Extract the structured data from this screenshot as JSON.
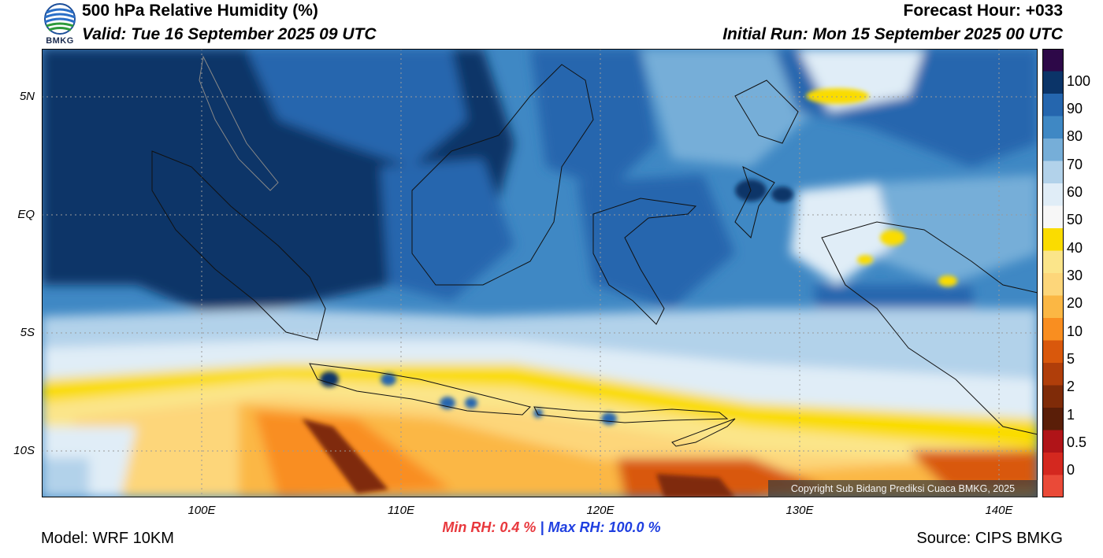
{
  "header": {
    "title": "500 hPa Relative Humidity (%)",
    "valid": "Valid: Tue 16 September 2025 09 UTC",
    "forecast_hour": "Forecast Hour: +033",
    "initial_run": "Initial Run: Mon 15 September 2025 00 UTC",
    "logo_text": "BMKG"
  },
  "map": {
    "lat_labels": [
      "5N",
      "EQ",
      "5S",
      "10S"
    ],
    "lon_labels": [
      "100E",
      "110E",
      "120E",
      "130E",
      "140E"
    ],
    "copyright": "Copyright Sub Bidang Prediksi Cuaca BMKG, 2025"
  },
  "colorbar": {
    "labels": [
      "100",
      "90",
      "80",
      "70",
      "60",
      "50",
      "40",
      "30",
      "20",
      "10",
      "5",
      "2",
      "1",
      "0.5",
      "0"
    ],
    "colors_top_to_bottom": [
      "#2d0848",
      "#0b3468",
      "#2566ae",
      "#3f88c4",
      "#76aed8",
      "#b2d2ea",
      "#e0edf7",
      "#f7f7f7",
      "#fadc00",
      "#fbe58a",
      "#fdd67a",
      "#fbb744",
      "#f98e20",
      "#d9580c",
      "#b03e0a",
      "#7f2b08",
      "#5a1e08",
      "#b01418",
      "#d4281f",
      "#ea4a38"
    ]
  },
  "footer": {
    "model": "Model: WRF 10KM",
    "min_rh": "Min RH:   0.4 %",
    "separator": "|",
    "max_rh": "Max RH: 100.0 %",
    "source": "Source: CIPS BMKG"
  }
}
